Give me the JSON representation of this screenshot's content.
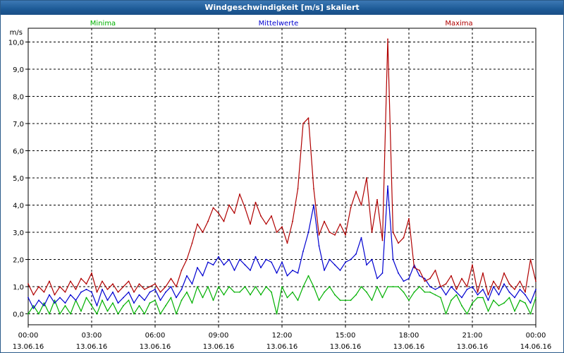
{
  "window": {
    "title": "Windgeschwindigkeit [m/s] skaliert"
  },
  "chart_data": {
    "type": "line",
    "title": "Windgeschwindigkeit [m/s] skaliert",
    "ylabel": "m/s",
    "xlabel": "",
    "ylim": [
      -0.4,
      10.5
    ],
    "xlim": [
      0,
      24
    ],
    "grid": true,
    "yticks": [
      0,
      1,
      2,
      3,
      4,
      5,
      6,
      7,
      8,
      9,
      10
    ],
    "ytick_labels": [
      "0,0",
      "1,0",
      "2,0",
      "3,0",
      "4,0",
      "5,0",
      "6,0",
      "7,0",
      "8,0",
      "9,0",
      "10,0"
    ],
    "xticks": [
      {
        "x": 0,
        "time": "00:00",
        "date": "13.06.16"
      },
      {
        "x": 3,
        "time": "03:00",
        "date": "13.06.16"
      },
      {
        "x": 6,
        "time": "06:00",
        "date": "13.06.16"
      },
      {
        "x": 9,
        "time": "09:00",
        "date": "13.06.16"
      },
      {
        "x": 12,
        "time": "12:00",
        "date": "13.06.16"
      },
      {
        "x": 15,
        "time": "15:00",
        "date": "13.06.16"
      },
      {
        "x": 18,
        "time": "18:00",
        "date": "13.06.16"
      },
      {
        "x": 21,
        "time": "21:00",
        "date": "13.06.16"
      },
      {
        "x": 24,
        "time": "00:00",
        "date": "14.06.16"
      }
    ],
    "series": [
      {
        "name": "Minima",
        "color": "#00b000",
        "x": [
          0,
          0.25,
          0.5,
          0.75,
          1,
          1.25,
          1.5,
          1.75,
          2,
          2.25,
          2.5,
          2.75,
          3,
          3.25,
          3.5,
          3.75,
          4,
          4.25,
          4.5,
          4.75,
          5,
          5.25,
          5.5,
          5.75,
          6,
          6.25,
          6.5,
          6.75,
          7,
          7.25,
          7.5,
          7.75,
          8,
          8.25,
          8.5,
          8.75,
          9,
          9.25,
          9.5,
          9.75,
          10,
          10.25,
          10.5,
          10.75,
          11,
          11.25,
          11.5,
          11.75,
          12,
          12.25,
          12.5,
          12.75,
          13,
          13.25,
          13.5,
          13.75,
          14,
          14.25,
          14.5,
          14.75,
          15,
          15.25,
          15.5,
          15.75,
          16,
          16.25,
          16.5,
          16.75,
          17,
          17.25,
          17.5,
          17.75,
          18,
          18.25,
          18.5,
          18.75,
          19,
          19.25,
          19.5,
          19.75,
          20,
          20.25,
          20.5,
          20.75,
          21,
          21.25,
          21.5,
          21.75,
          22,
          22.25,
          22.5,
          22.75,
          23,
          23.25,
          23.5,
          23.75,
          24
        ],
        "values": [
          0.0,
          0.3,
          0.0,
          0.4,
          0.0,
          0.5,
          0.0,
          0.3,
          0.0,
          0.5,
          0.1,
          0.6,
          0.3,
          0.0,
          0.5,
          0.1,
          0.4,
          0.0,
          0.3,
          0.5,
          0.0,
          0.3,
          0.0,
          0.4,
          0.5,
          0.0,
          0.3,
          0.6,
          0.0,
          0.5,
          0.8,
          0.4,
          1.0,
          0.6,
          1.0,
          0.5,
          1.0,
          0.7,
          1.0,
          0.8,
          0.8,
          1.0,
          0.7,
          1.0,
          0.7,
          1.0,
          0.8,
          0.0,
          1.0,
          0.6,
          0.8,
          0.5,
          1.0,
          1.4,
          1.0,
          0.5,
          0.8,
          1.0,
          0.7,
          0.5,
          0.5,
          0.5,
          0.7,
          1.0,
          0.8,
          0.5,
          1.0,
          0.6,
          1.0,
          1.0,
          1.0,
          0.8,
          0.5,
          0.8,
          1.0,
          0.8,
          0.8,
          0.7,
          0.6,
          0.0,
          0.5,
          0.7,
          0.3,
          0.0,
          0.4,
          0.6,
          0.6,
          0.1,
          0.5,
          0.3,
          0.4,
          0.6,
          0.1,
          0.5,
          0.4,
          0.0,
          0.6
        ]
      },
      {
        "name": "Mittelwerte",
        "color": "#0000d0",
        "x": [
          0,
          0.25,
          0.5,
          0.75,
          1,
          1.25,
          1.5,
          1.75,
          2,
          2.25,
          2.5,
          2.75,
          3,
          3.25,
          3.5,
          3.75,
          4,
          4.25,
          4.5,
          4.75,
          5,
          5.25,
          5.5,
          5.75,
          6,
          6.25,
          6.5,
          6.75,
          7,
          7.25,
          7.5,
          7.75,
          8,
          8.25,
          8.5,
          8.75,
          9,
          9.25,
          9.5,
          9.75,
          10,
          10.25,
          10.5,
          10.75,
          11,
          11.25,
          11.5,
          11.75,
          12,
          12.25,
          12.5,
          12.75,
          13,
          13.25,
          13.5,
          13.75,
          14,
          14.25,
          14.5,
          14.75,
          15,
          15.25,
          15.5,
          15.75,
          16,
          16.25,
          16.5,
          16.75,
          17,
          17.25,
          17.5,
          17.75,
          18,
          18.25,
          18.5,
          18.75,
          19,
          19.25,
          19.5,
          19.75,
          20,
          20.25,
          20.5,
          20.75,
          21,
          21.25,
          21.5,
          21.75,
          22,
          22.25,
          22.5,
          22.75,
          23,
          23.25,
          23.5,
          23.75,
          24
        ],
        "values": [
          0.6,
          0.2,
          0.5,
          0.3,
          0.7,
          0.4,
          0.6,
          0.4,
          0.7,
          0.5,
          0.8,
          0.9,
          0.8,
          0.3,
          0.9,
          0.5,
          0.8,
          0.4,
          0.6,
          0.8,
          0.4,
          0.7,
          0.5,
          0.8,
          0.9,
          0.5,
          0.8,
          1.0,
          0.6,
          0.9,
          1.4,
          1.1,
          1.7,
          1.4,
          1.9,
          1.8,
          2.1,
          1.8,
          2.0,
          1.6,
          2.0,
          1.8,
          1.6,
          2.1,
          1.7,
          2.0,
          1.9,
          1.5,
          1.9,
          1.4,
          1.6,
          1.5,
          2.3,
          3.0,
          4.0,
          2.5,
          1.6,
          2.0,
          1.8,
          1.6,
          1.9,
          2.0,
          2.2,
          2.8,
          1.8,
          2.0,
          1.3,
          1.5,
          4.7,
          2.0,
          1.5,
          1.2,
          1.3,
          1.8,
          1.4,
          1.3,
          1.0,
          0.9,
          1.0,
          0.7,
          1.0,
          0.8,
          0.6,
          0.9,
          1.0,
          0.7,
          0.9,
          0.5,
          1.0,
          0.7,
          1.1,
          0.8,
          0.6,
          0.9,
          0.7,
          0.4,
          0.9
        ]
      },
      {
        "name": "Maxima",
        "color": "#b00000",
        "x": [
          0,
          0.25,
          0.5,
          0.75,
          1,
          1.25,
          1.5,
          1.75,
          2,
          2.25,
          2.5,
          2.75,
          3,
          3.25,
          3.5,
          3.75,
          4,
          4.25,
          4.5,
          4.75,
          5,
          5.25,
          5.5,
          5.75,
          6,
          6.25,
          6.5,
          6.75,
          7,
          7.25,
          7.5,
          7.75,
          8,
          8.25,
          8.5,
          8.75,
          9,
          9.25,
          9.5,
          9.75,
          10,
          10.25,
          10.5,
          10.75,
          11,
          11.25,
          11.5,
          11.75,
          12,
          12.25,
          12.5,
          12.75,
          13,
          13.25,
          13.5,
          13.75,
          14,
          14.25,
          14.5,
          14.75,
          15,
          15.25,
          15.5,
          15.75,
          16,
          16.25,
          16.5,
          16.75,
          17,
          17.25,
          17.5,
          17.75,
          18,
          18.25,
          18.5,
          18.75,
          19,
          19.25,
          19.5,
          19.75,
          20,
          20.25,
          20.5,
          20.75,
          21,
          21.25,
          21.5,
          21.75,
          22,
          22.25,
          22.5,
          22.75,
          23,
          23.25,
          23.5,
          23.75,
          24
        ],
        "values": [
          1.1,
          0.7,
          1.0,
          0.8,
          1.2,
          0.7,
          1.0,
          0.8,
          1.2,
          0.9,
          1.3,
          1.1,
          1.5,
          0.8,
          1.2,
          0.9,
          1.1,
          0.8,
          1.0,
          1.2,
          0.8,
          1.1,
          0.9,
          1.0,
          1.1,
          0.8,
          1.0,
          1.3,
          1.0,
          1.6,
          2.0,
          2.6,
          3.3,
          3.0,
          3.4,
          3.9,
          3.7,
          3.4,
          4.0,
          3.7,
          4.4,
          3.9,
          3.3,
          4.1,
          3.6,
          3.3,
          3.6,
          3.0,
          3.2,
          2.6,
          3.4,
          4.6,
          7.0,
          7.2,
          4.6,
          2.9,
          3.4,
          3.0,
          2.9,
          3.3,
          2.9,
          3.9,
          4.5,
          4.0,
          5.0,
          3.0,
          4.2,
          2.7,
          10.1,
          3.0,
          2.6,
          2.8,
          3.5,
          1.7,
          1.6,
          1.2,
          1.3,
          1.6,
          1.0,
          1.1,
          1.4,
          0.9,
          1.3,
          1.0,
          1.8,
          0.8,
          1.5,
          0.7,
          1.2,
          0.9,
          1.5,
          1.1,
          0.9,
          1.2,
          0.8,
          2.0,
          1.2
        ]
      }
    ]
  }
}
